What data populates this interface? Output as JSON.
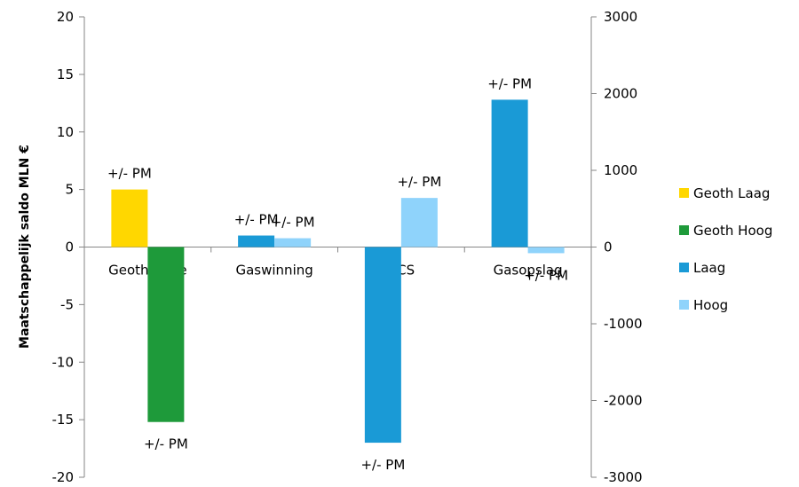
{
  "chart_data": {
    "type": "bar",
    "categories": [
      "Geothermie",
      "Gaswinning",
      "CCS",
      "Gasopslag"
    ],
    "ylabel": "Maatschappelijk saldo MLN €",
    "ylim": [
      -20,
      20
    ],
    "yticks": [
      "20",
      "15",
      "10",
      "5",
      "0",
      "-5",
      "-10",
      "-15",
      "-20"
    ],
    "y2lim": [
      -3000,
      3000
    ],
    "y2ticks": [
      "3000",
      "2000",
      "1000",
      "0",
      "-1000",
      "-2000",
      "-3000"
    ],
    "series": [
      {
        "name": "Geoth Laag",
        "color": "#FFD700",
        "axis": "left",
        "values": [
          5,
          null,
          null,
          null
        ],
        "labels": [
          "+/- PM",
          null,
          null,
          null
        ]
      },
      {
        "name": "Geoth Hoog",
        "color": "#1E9A3A",
        "axis": "left",
        "values": [
          -15.2,
          null,
          null,
          null
        ],
        "labels": [
          "+/- PM",
          null,
          null,
          null
        ]
      },
      {
        "name": "Laag",
        "color": "#1A9AD6",
        "axis": "right",
        "values": [
          null,
          150,
          -2550,
          1920
        ],
        "labels": [
          null,
          "+/- PM",
          "+/- PM",
          "+/- PM"
        ]
      },
      {
        "name": "Hoog",
        "color": "#8FD3FB",
        "axis": "right",
        "values": [
          null,
          115,
          640,
          -80
        ],
        "labels": [
          null,
          "+/- PM",
          "+/- PM",
          "+/- PM"
        ]
      }
    ],
    "grid": false,
    "legend": "right"
  }
}
